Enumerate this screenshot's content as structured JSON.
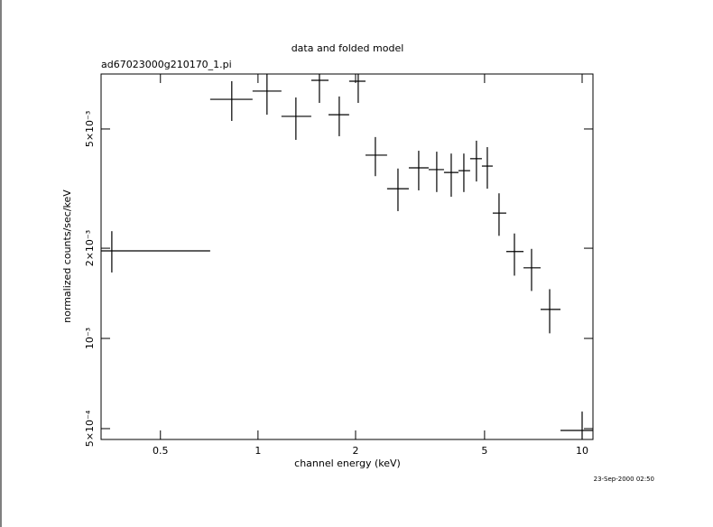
{
  "chart_data": {
    "type": "scatter",
    "title": "data and folded model",
    "subtitle": "ad67023000g210170_1.pi",
    "x_label": "channel energy (keV)",
    "y_label": "normalized counts/sec/keV",
    "timestamp": "23-Sep-2000 02:50",
    "xlog": true,
    "ylog": true,
    "xlim": [
      0.328,
      10.8
    ],
    "ylim": [
      0.00046,
      0.00763
    ],
    "xticks": [
      0.5,
      1,
      2,
      5,
      10
    ],
    "yticks": [
      {
        "value": 0.0005,
        "label": "5×10⁻⁴"
      },
      {
        "value": 0.001,
        "label": "10⁻³"
      },
      {
        "value": 0.002,
        "label": "2×10⁻³"
      },
      {
        "value": 0.005,
        "label": "5×10⁻³"
      }
    ],
    "series": [
      {
        "color": "#000000",
        "x": [
          0.354,
          0.83,
          1.066,
          1.309,
          1.547,
          1.781,
          2.038,
          2.302,
          2.703,
          3.132,
          3.56,
          3.946,
          4.316,
          4.72,
          5.099,
          5.542,
          6.182,
          6.982,
          7.94,
          10
        ],
        "x_low": [
          0.328,
          0.712,
          0.962,
          1.181,
          1.46,
          1.65,
          1.911,
          2.146,
          2.502,
          2.919,
          3.361,
          3.748,
          4.153,
          4.513,
          4.906,
          5.299,
          5.834,
          6.594,
          7.445,
          8.575
        ],
        "x_high": [
          0.712,
          0.962,
          1.181,
          1.46,
          1.65,
          1.911,
          2.146,
          2.502,
          2.919,
          3.361,
          3.748,
          4.153,
          4.513,
          4.906,
          5.299,
          5.834,
          6.594,
          7.445,
          8.575,
          10.8
        ],
        "y": [
          0.00196,
          0.00628,
          0.00669,
          0.00551,
          0.00727,
          0.00558,
          0.00722,
          0.00409,
          0.00316,
          0.00371,
          0.00366,
          0.00358,
          0.00363,
          0.00398,
          0.00376,
          0.00262,
          0.00195,
          0.00172,
          0.00125,
          0.000493
        ],
        "y_low": [
          0.00166,
          0.00532,
          0.00558,
          0.0046,
          0.00611,
          0.00473,
          0.00611,
          0.00348,
          0.00266,
          0.00312,
          0.00308,
          0.00297,
          0.00308,
          0.00334,
          0.00316,
          0.0022,
          0.00162,
          0.00144,
          0.00104,
          0.00046
        ],
        "y_high": [
          0.00228,
          0.00722,
          0.00763,
          0.00637,
          0.00763,
          0.00642,
          0.00763,
          0.0047,
          0.00369,
          0.00423,
          0.0042,
          0.00414,
          0.00414,
          0.00457,
          0.00435,
          0.00305,
          0.00224,
          0.00199,
          0.00146,
          0.00057
        ]
      }
    ]
  }
}
